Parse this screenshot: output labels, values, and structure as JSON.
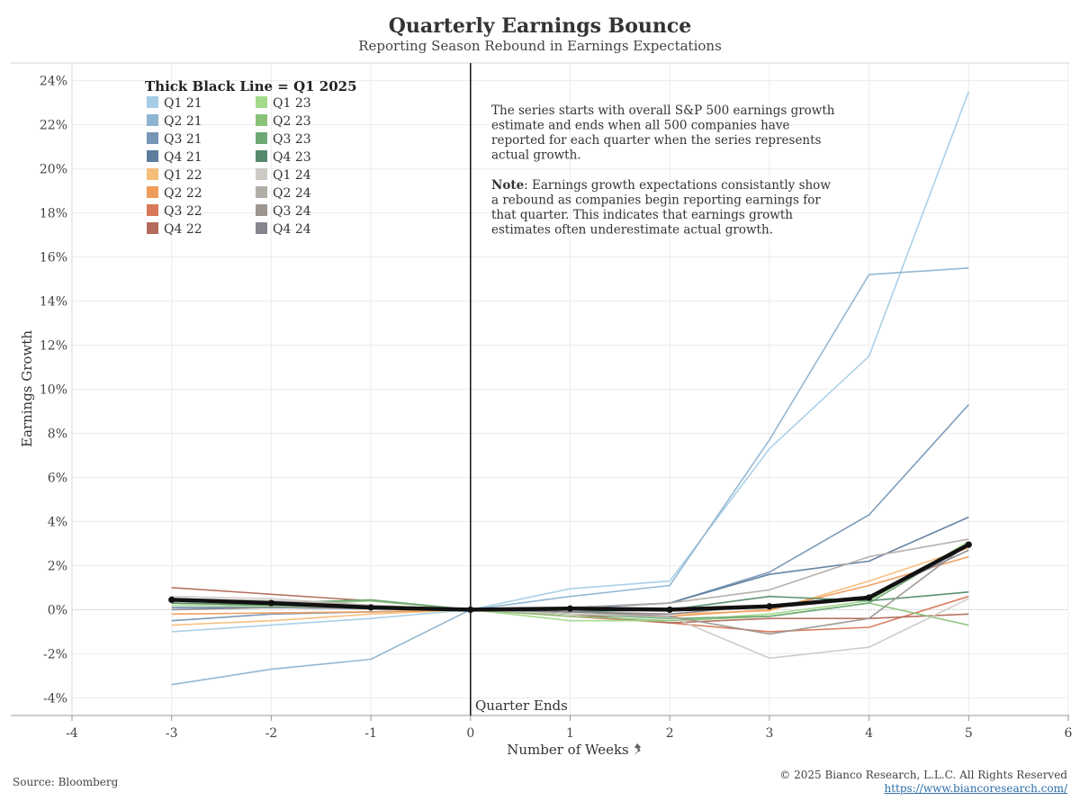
{
  "header": {
    "title": "Quarterly Earnings Bounce",
    "subtitle": "Reporting Season Rebound in Earnings Expectations"
  },
  "footer": {
    "source": "Source: Bloomberg",
    "copyright": "© 2025 Bianco Research, L.L.C. All Rights Reserved",
    "url": "https://www.biancoresearch.com/"
  },
  "annotations": {
    "legend_title": "Thick Black Line = Q1 2025",
    "quarter_ends": "Quarter Ends",
    "note_lines_1": [
      "The series starts with overall S&P 500 earnings growth",
      "estimate and ends when all 500 companies have",
      "reported for each quarter when the series represents",
      "actual growth."
    ],
    "note_bold": "Note",
    "note_lines_2": [
      ": Earnings growth expectations consistantly show",
      "a rebound as companies begin reporting earnings for",
      "that quarter. This indicates that earnings growth",
      "estimates often underestimate actual growth."
    ]
  },
  "chart_data": {
    "type": "line",
    "xlabel": "Number of Weeks",
    "ylabel": "Earnings Growth",
    "xlim": [
      -4,
      6
    ],
    "ylim": [
      -4.8,
      24.8
    ],
    "x_ticks": [
      -4,
      -3,
      -2,
      -1,
      0,
      1,
      2,
      3,
      4,
      5,
      6
    ],
    "y_ticks": [
      -4,
      -2,
      0,
      2,
      4,
      6,
      8,
      10,
      12,
      14,
      16,
      18,
      20,
      22,
      24
    ],
    "y_tick_suffix": "%",
    "vertical_line_x": 0,
    "x": [
      -3,
      -2,
      -1,
      0,
      1,
      2,
      3,
      4,
      5
    ],
    "series": [
      {
        "name": "Q1 21",
        "color": "#a6cde6",
        "values": [
          -1.0,
          -0.7,
          -0.4,
          0,
          0.95,
          1.3,
          7.3,
          11.5,
          23.5
        ]
      },
      {
        "name": "Q2 21",
        "color": "#8fb4d0",
        "values": [
          -3.4,
          -2.7,
          -2.25,
          0,
          0.6,
          1.1,
          7.7,
          15.2,
          15.5
        ]
      },
      {
        "name": "Q3 21",
        "color": "#7796b6",
        "values": [
          -0.5,
          -0.2,
          -0.1,
          0,
          0.1,
          0.3,
          1.7,
          4.3,
          9.3
        ]
      },
      {
        "name": "Q4 21",
        "color": "#5e7d9e",
        "values": [
          0.1,
          0.1,
          0.05,
          0,
          0.05,
          0.3,
          1.6,
          2.2,
          4.2
        ]
      },
      {
        "name": "Q1 22",
        "color": "#f6bd79",
        "values": [
          -0.7,
          -0.5,
          -0.2,
          0,
          -0.1,
          -0.2,
          -0.05,
          1.3,
          2.8
        ]
      },
      {
        "name": "Q2 22",
        "color": "#ef9c5a",
        "values": [
          -0.2,
          -0.15,
          -0.1,
          0,
          -0.2,
          -0.3,
          0.0,
          1.1,
          2.4
        ]
      },
      {
        "name": "Q3 22",
        "color": "#d7785a",
        "values": [
          0.3,
          0.2,
          0.15,
          0,
          -0.3,
          -0.6,
          -1.0,
          -0.8,
          0.6
        ]
      },
      {
        "name": "Q4 22",
        "color": "#b36a5a",
        "values": [
          1.0,
          0.7,
          0.4,
          0,
          -0.2,
          -0.6,
          -0.4,
          -0.4,
          -0.2
        ]
      },
      {
        "name": "Q1 23",
        "color": "#a3d98b",
        "values": [
          0.2,
          0.15,
          0.1,
          0,
          -0.5,
          -0.5,
          -0.2,
          0.4,
          3.1
        ]
      },
      {
        "name": "Q2 23",
        "color": "#8ac27a",
        "values": [
          0.3,
          0.2,
          0.4,
          0,
          -0.3,
          -0.5,
          -0.3,
          0.3,
          -0.7
        ]
      },
      {
        "name": "Q3 23",
        "color": "#6ea874",
        "values": [
          0.4,
          0.3,
          0.45,
          0,
          -0.2,
          -0.4,
          -0.3,
          0.3,
          3.0
        ]
      },
      {
        "name": "Q4 23",
        "color": "#558b6c",
        "values": [
          0.3,
          0.2,
          0.1,
          0,
          -0.1,
          0.0,
          0.6,
          0.4,
          0.8
        ]
      },
      {
        "name": "Q1 24",
        "color": "#cdc9c5",
        "values": [
          0.6,
          0.5,
          0.2,
          0,
          -0.2,
          -0.3,
          -2.2,
          -1.7,
          0.5
        ]
      },
      {
        "name": "Q2 24",
        "color": "#b3ada8",
        "values": [
          0.5,
          0.4,
          0.2,
          0,
          0.1,
          0.3,
          0.9,
          2.4,
          3.2
        ]
      },
      {
        "name": "Q3 24",
        "color": "#9c9590",
        "values": [
          0.5,
          0.3,
          0.1,
          0,
          -0.1,
          -0.3,
          -1.1,
          -0.4,
          3.0
        ]
      },
      {
        "name": "Q4 24",
        "color": "#858690",
        "values": [
          0.0,
          0.1,
          0.05,
          0,
          -0.1,
          -0.2,
          0.2,
          0.6,
          2.7
        ]
      },
      {
        "name": "Q1 2025",
        "color": "#111111",
        "thick": true,
        "values": [
          0.45,
          0.3,
          0.1,
          0,
          0.05,
          0.0,
          0.15,
          0.55,
          2.95
        ]
      }
    ]
  }
}
